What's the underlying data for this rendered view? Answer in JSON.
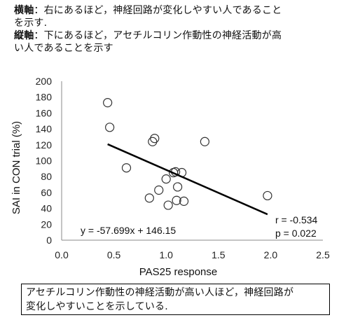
{
  "notes": {
    "x_key": "横軸",
    "x_text_1": "：右にあるほど，神経回路が変化しやすい人であること",
    "x_text_2": "を示す.",
    "y_key": "縦軸",
    "y_text_1": "：下にあるほど，アセチルコリン作動性の神経活動が高",
    "y_text_2": "い人であることを示す"
  },
  "chart_data": {
    "type": "scatter",
    "title": "",
    "xlabel": "PAS25 response",
    "ylabel": "SAI in CON trial (%)",
    "xlim": [
      0,
      2.5
    ],
    "ylim": [
      0,
      200
    ],
    "xticks": [
      "0.0",
      "0.5",
      "1.0",
      "1.5",
      "2.0",
      "2.5"
    ],
    "yticks": [
      "0",
      "20",
      "40",
      "60",
      "80",
      "100",
      "120",
      "140",
      "160",
      "180",
      "200"
    ],
    "points": [
      {
        "x": 0.44,
        "y": 173
      },
      {
        "x": 0.46,
        "y": 142
      },
      {
        "x": 0.62,
        "y": 91
      },
      {
        "x": 0.84,
        "y": 53
      },
      {
        "x": 0.87,
        "y": 124
      },
      {
        "x": 0.89,
        "y": 128
      },
      {
        "x": 0.93,
        "y": 63
      },
      {
        "x": 1.0,
        "y": 77
      },
      {
        "x": 1.02,
        "y": 44
      },
      {
        "x": 1.07,
        "y": 85
      },
      {
        "x": 1.09,
        "y": 86
      },
      {
        "x": 1.1,
        "y": 50
      },
      {
        "x": 1.11,
        "y": 67
      },
      {
        "x": 1.15,
        "y": 85
      },
      {
        "x": 1.17,
        "y": 49
      },
      {
        "x": 1.37,
        "y": 124
      },
      {
        "x": 1.97,
        "y": 56
      }
    ],
    "trendline": {
      "slope": -57.699,
      "intercept": 146.15,
      "x_start": 0.44,
      "x_end": 1.97
    },
    "equation": "y = -57.699x + 146.15",
    "r_text": "r = -0.534",
    "p_text": "p = 0.022",
    "grid": false,
    "legend": "none",
    "marker_color": "#333333",
    "line_color": "#000000"
  },
  "footer": {
    "line1": "アセチルコリン作動性の神経活動が高い人ほど，神経回路が",
    "line2": "変化しやすいことを示している."
  }
}
